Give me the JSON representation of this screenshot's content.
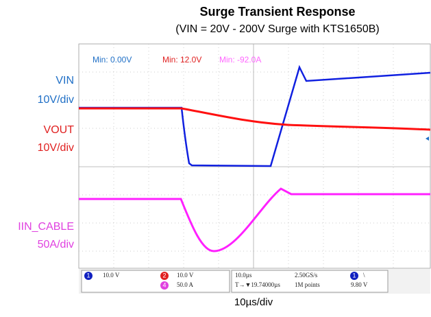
{
  "header": {
    "title": "Surge Transient Response",
    "subtitle": "(VIN = 20V - 200V Surge with KTS1650B)"
  },
  "channels": [
    {
      "name": "VIN",
      "scale": "10V/div"
    },
    {
      "name": "VOUT",
      "scale": "10V/div"
    },
    {
      "name": "IIN_CABLE",
      "scale": "50A/div"
    }
  ],
  "readouts": [
    "Min: 0.00V",
    "Min: 12.0V",
    "Min: -92.0A"
  ],
  "status": {
    "ch1_id": "1",
    "ch1_scale": "10.0 V",
    "ch2_id": "2",
    "ch2_scale": "10.0 V",
    "ch4_id": "4",
    "ch4_scale": "50.0 A",
    "timebase": "10.0µs",
    "sample_rate": "2.50GS/s",
    "trigger_pos": "T→▼19.74000µs",
    "record": "1M points",
    "trig_ch": "1",
    "trig_slope": "\\",
    "trig_level": "9.80 V"
  },
  "footer": {
    "xlabel": "10µs/div"
  }
}
